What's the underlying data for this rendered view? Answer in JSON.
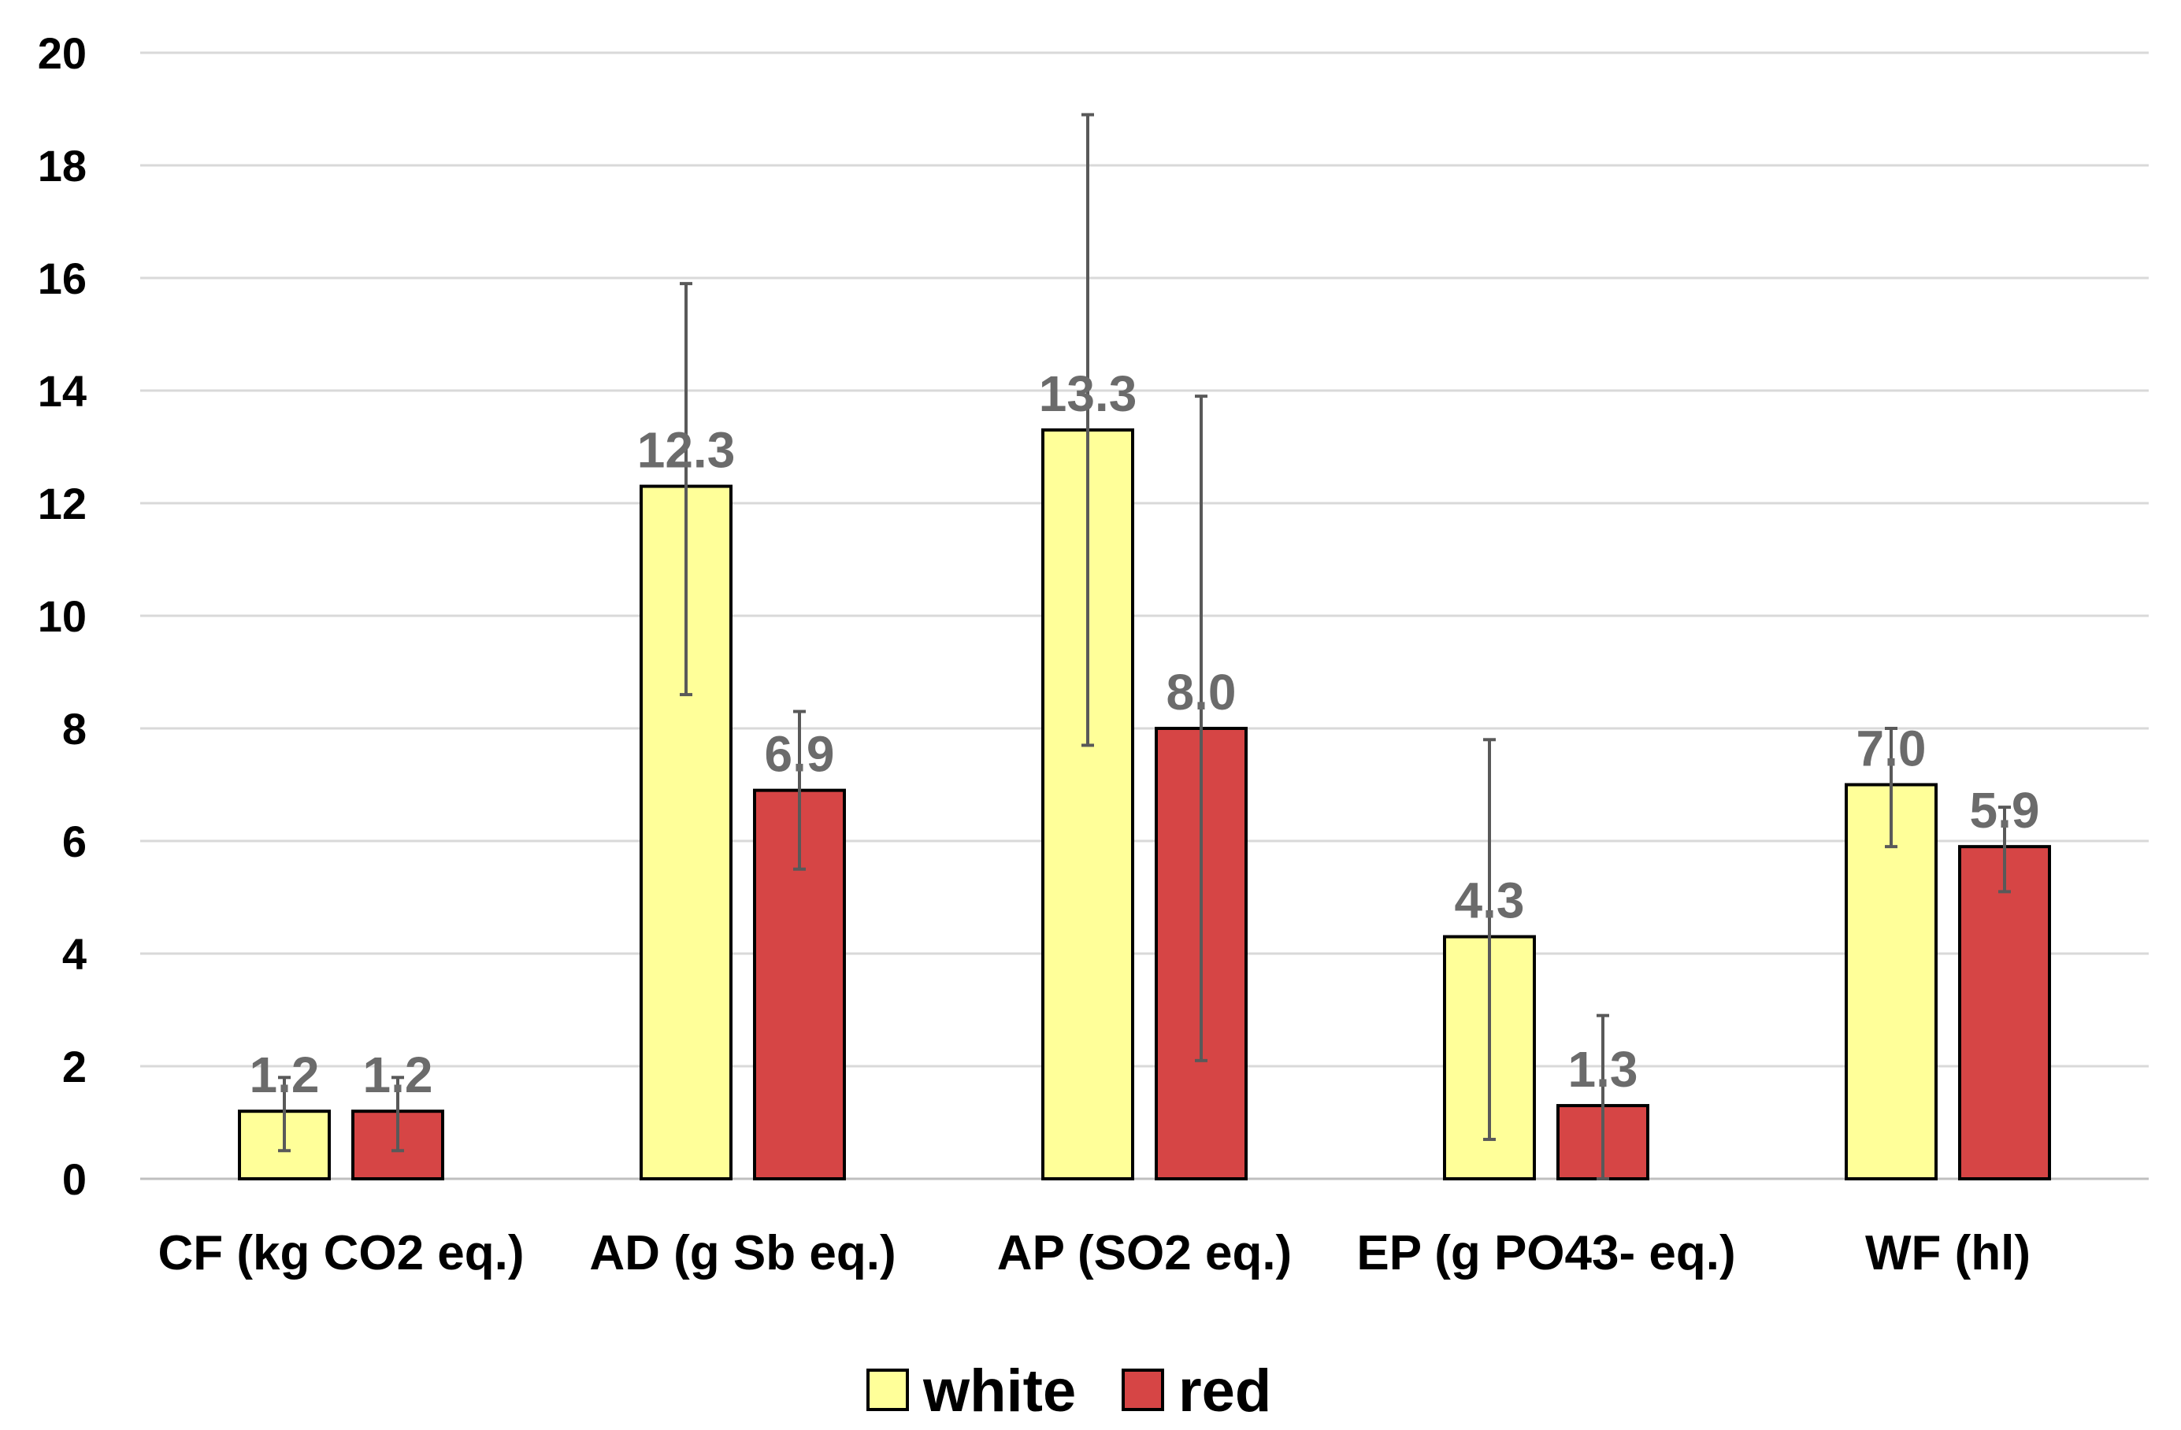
{
  "chart_data": {
    "type": "bar",
    "title": "",
    "xlabel": "",
    "ylabel": "",
    "ylim": [
      0,
      20
    ],
    "yticks": [
      0,
      2,
      4,
      6,
      8,
      10,
      12,
      14,
      16,
      18,
      20
    ],
    "grid": true,
    "legend_position": "bottom-center",
    "categories": [
      "CF (kg CO2 eq.)",
      "AD (g Sb eq.)",
      "AP (SO2 eq.)",
      "EP (g PO43- eq.)",
      "WF (hl)"
    ],
    "series": [
      {
        "name": "white",
        "color": "#ffff99",
        "values": [
          1.2,
          12.3,
          13.3,
          4.3,
          7.0
        ],
        "labels": [
          "1.2",
          "12.3",
          "13.3",
          "4.3",
          "7.0"
        ],
        "error_low": [
          0.5,
          8.6,
          7.7,
          0.7,
          5.9
        ],
        "error_high": [
          1.8,
          15.9,
          18.9,
          7.8,
          8.0
        ]
      },
      {
        "name": "red",
        "color": "#d64545",
        "values": [
          1.2,
          6.9,
          8.0,
          1.3,
          5.9
        ],
        "labels": [
          "1.2",
          "6.9",
          "8.0",
          "1.3",
          "5.9"
        ],
        "error_low": [
          0.5,
          5.5,
          2.1,
          0.0,
          5.1
        ],
        "error_high": [
          1.8,
          8.3,
          13.9,
          2.9,
          6.6
        ]
      }
    ]
  }
}
